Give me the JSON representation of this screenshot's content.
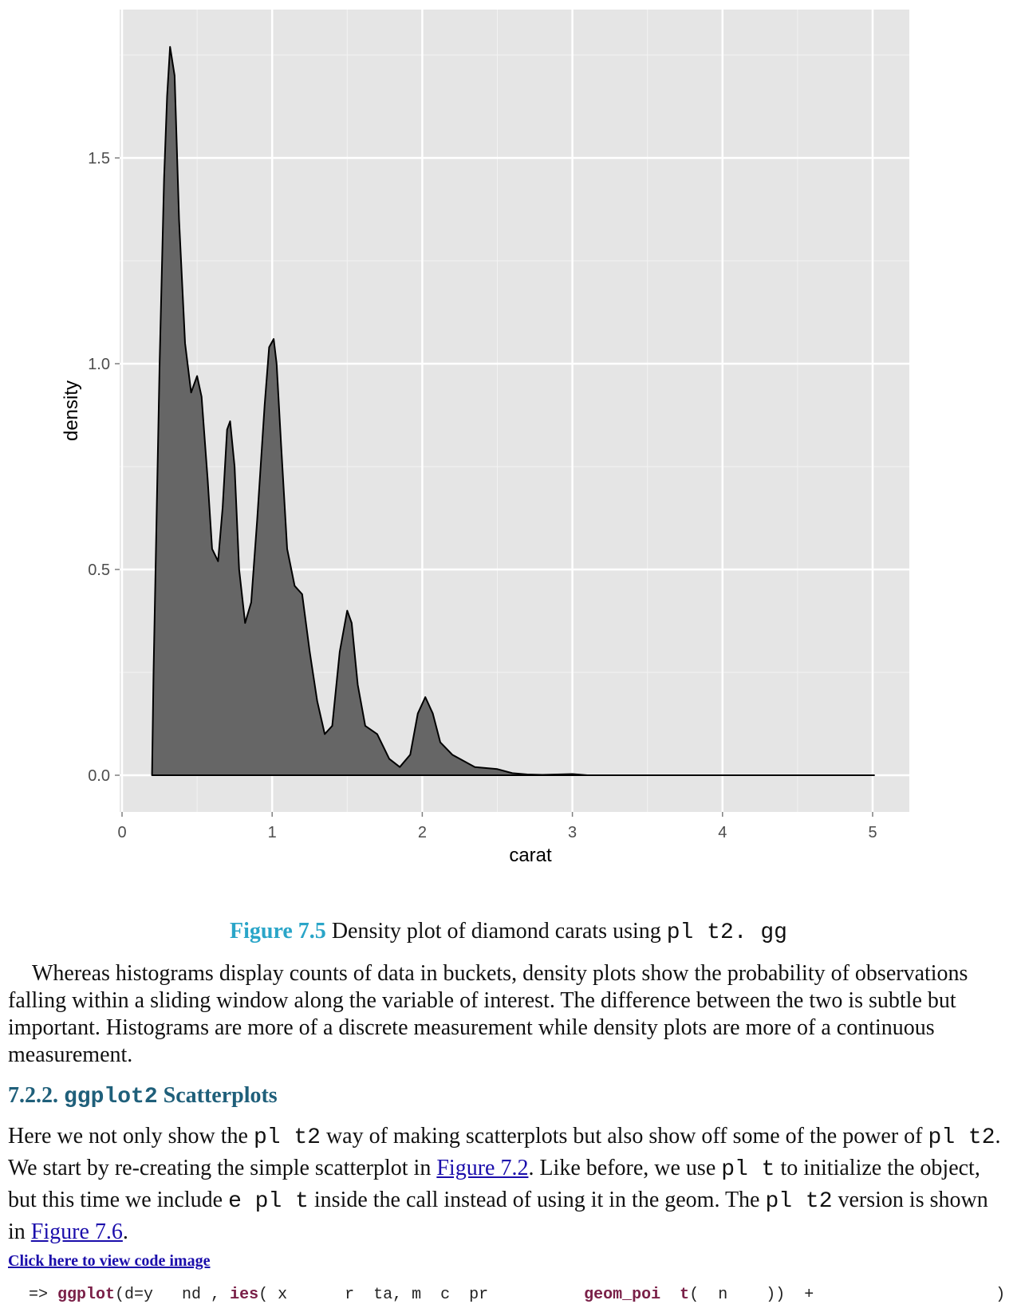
{
  "chart_data": {
    "type": "area",
    "xlabel": "carat",
    "ylabel": "density",
    "xlim": [
      0,
      5
    ],
    "ylim": [
      -0.09,
      1.85
    ],
    "x_ticks": [
      0,
      1,
      2,
      3,
      4,
      5
    ],
    "y_ticks": [
      0.0,
      0.5,
      1.0,
      1.5
    ],
    "x_tick_labels": [
      "0",
      "1",
      "2",
      "3",
      "4",
      "5"
    ],
    "y_tick_labels": [
      "0.0",
      "0.5",
      "1.0",
      "1.5"
    ],
    "grid": true,
    "background": "#e5e5e5",
    "fill_color": "#666666",
    "x": [
      0.2,
      0.21,
      0.25,
      0.28,
      0.3,
      0.32,
      0.35,
      0.38,
      0.42,
      0.46,
      0.5,
      0.53,
      0.57,
      0.6,
      0.64,
      0.67,
      0.7,
      0.72,
      0.75,
      0.78,
      0.82,
      0.86,
      0.9,
      0.95,
      0.98,
      1.01,
      1.03,
      1.06,
      1.1,
      1.15,
      1.2,
      1.25,
      1.3,
      1.35,
      1.4,
      1.45,
      1.5,
      1.53,
      1.57,
      1.62,
      1.7,
      1.78,
      1.85,
      1.92,
      1.97,
      2.02,
      2.07,
      2.12,
      2.2,
      2.35,
      2.5,
      2.6,
      2.7,
      2.8,
      3.0,
      3.1,
      3.5,
      4.0,
      5.01
    ],
    "y": [
      0.0,
      0.25,
      1.0,
      1.45,
      1.65,
      1.77,
      1.7,
      1.35,
      1.05,
      0.93,
      0.97,
      0.92,
      0.72,
      0.55,
      0.52,
      0.65,
      0.84,
      0.86,
      0.75,
      0.5,
      0.37,
      0.42,
      0.62,
      0.9,
      1.04,
      1.06,
      1.0,
      0.8,
      0.55,
      0.46,
      0.44,
      0.3,
      0.18,
      0.1,
      0.12,
      0.3,
      0.4,
      0.37,
      0.22,
      0.12,
      0.1,
      0.04,
      0.02,
      0.05,
      0.15,
      0.19,
      0.15,
      0.08,
      0.05,
      0.02,
      0.015,
      0.005,
      0.002,
      0.001,
      0.003,
      0.0,
      0.0,
      0.0,
      0.0
    ]
  },
  "caption": {
    "figure_number": "Figure 7.5",
    "text": " Density plot of diamond carats using ",
    "code": "pl  t2.  gg"
  },
  "paragraph1": "Whereas histograms display counts of data in buckets, density plots show the probability of observations falling within a sliding window along the variable of interest. The difference between the two is subtle but important. Histograms are more of a discrete measurement while density plots are more of a continuous measurement.",
  "section": {
    "number": "7.2.2. ",
    "code": "ggplot2",
    "title": " Scatterplots"
  },
  "paragraph2": {
    "t1": "Here we not only show the ",
    "c1": "pl  t2",
    "t2": " way of making scatterplots but also show off some of the power of ",
    "c2": "pl  t2",
    "t3": ". We start by re-creating the simple scatterplot in ",
    "link1": "Figure 7.2",
    "t4": ". Like before, we use ",
    "c3": "pl  t",
    "t5": " to initialize the object, but this time we include ",
    "c4": "e  pl  t",
    "t6": " inside the call instead of using it in the geom. The ",
    "c5": "pl  t2",
    "t7": " version is shown in ",
    "link2": "Figure 7.6",
    "t8": "."
  },
  "code_link": "Click here to view code image",
  "code_line": {
    "prompt": "=> ",
    "fn1": "ggplot",
    "mid": "(d=y   nd , ",
    "fn2": "ies",
    "args": "( x      r  ta, m  c  pr          ",
    "fn3": "geom_poi  t",
    "tail": "(  n    ))  +                   )"
  }
}
